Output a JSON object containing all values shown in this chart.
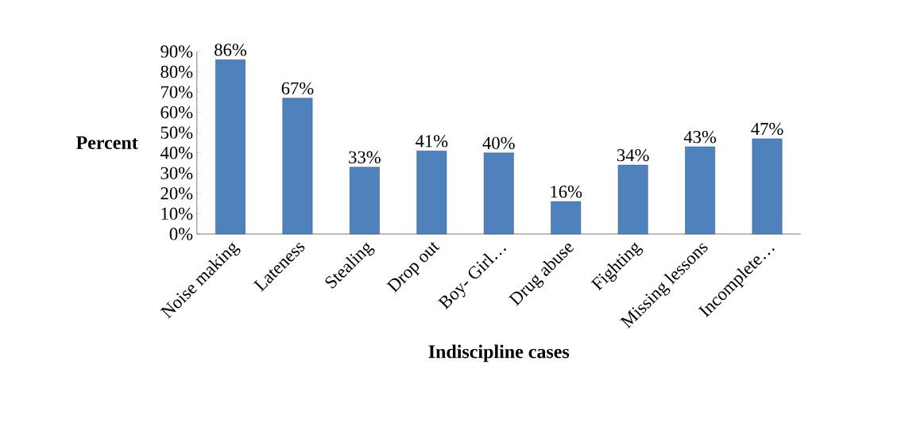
{
  "chart_data": {
    "type": "bar",
    "xlabel": "Indiscipline cases",
    "ylabel": "Percent",
    "categories": [
      "Noise making",
      "Lateness",
      "Stealing",
      "Drop out",
      "Boy- Girl…",
      "Drug abuse",
      "Fighting",
      "Missing lessons",
      "Incomplete…"
    ],
    "values": [
      86,
      67,
      33,
      41,
      40,
      16,
      34,
      43,
      47
    ],
    "value_labels": [
      "86%",
      "67%",
      "33%",
      "41%",
      "40%",
      "16%",
      "34%",
      "43%",
      "47%"
    ],
    "color": "#4f81bd",
    "ylim": [
      0,
      90
    ],
    "yticks": [
      {
        "value": 0,
        "label": "0%"
      },
      {
        "value": 10,
        "label": "10%"
      },
      {
        "value": 20,
        "label": "20%"
      },
      {
        "value": 30,
        "label": "30%"
      },
      {
        "value": 40,
        "label": "40%"
      },
      {
        "value": 50,
        "label": "50%"
      },
      {
        "value": 60,
        "label": "60%"
      },
      {
        "value": 70,
        "label": "70%"
      },
      {
        "value": 80,
        "label": "80%"
      },
      {
        "value": 90,
        "label": "90%"
      }
    ]
  }
}
